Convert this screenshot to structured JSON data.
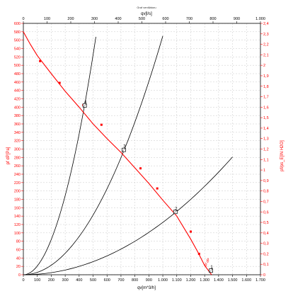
{
  "chart_data": {
    "type": "line",
    "title": "Graf ventilátoru",
    "top_axis_label": "qv[l/s]",
    "bottom_axis_label": "qv[m^3/h]",
    "left_axis_label": "pf dP[Pa]",
    "right_axis_label": "pf/ps_E[IN H2O]",
    "x_m3h": {
      "min": 0,
      "max": 1700,
      "ticks": [
        0,
        100,
        200,
        300,
        400,
        500,
        600,
        700,
        800,
        900,
        1000,
        1100,
        1200,
        1300,
        1400,
        1500,
        1600,
        1700
      ],
      "tick_labels": [
        "0",
        "100",
        "200",
        "300",
        "400",
        "500",
        "600",
        "700",
        "800",
        "900",
        "1.000",
        "1.100",
        "1.200",
        "1.300",
        "1.400",
        "1.500",
        "1.600",
        "1.700"
      ]
    },
    "x_ls": {
      "min": 0,
      "max": 1000,
      "ticks": [
        0,
        100,
        200,
        300,
        400,
        500,
        600,
        700,
        800,
        900,
        1000
      ],
      "tick_labels": [
        "0",
        "100",
        "200",
        "300",
        "400",
        "500",
        "600",
        "700",
        "800",
        "900",
        "1.000"
      ]
    },
    "y_pa": {
      "min": 0,
      "max": 600,
      "ticks": [
        0,
        20,
        40,
        60,
        80,
        100,
        120,
        140,
        160,
        180,
        200,
        220,
        240,
        260,
        280,
        300,
        320,
        340,
        360,
        380,
        400,
        420,
        440,
        460,
        480,
        500,
        520,
        540,
        560,
        580,
        600
      ],
      "tick_labels": [
        "0",
        "20",
        "40",
        "60",
        "80",
        "100",
        "120",
        "140",
        "160",
        "180",
        "200",
        "220",
        "240",
        "260",
        "280",
        "300",
        "320",
        "340",
        "360",
        "380",
        "400",
        "420",
        "440",
        "460",
        "480",
        "500",
        "520",
        "540",
        "560",
        "580",
        "600"
      ]
    },
    "y_inh2o": {
      "min": 0,
      "max": 2.4,
      "ticks": [
        0,
        0.1,
        0.2,
        0.3,
        0.4,
        0.5,
        0.6,
        0.7,
        0.8,
        0.9,
        1,
        1.1,
        1.2,
        1.3,
        1.4,
        1.5,
        1.6,
        1.7,
        1.8,
        1.9,
        2,
        2.1,
        2.2,
        2.3,
        2.4
      ],
      "tick_labels": [
        "0",
        "0,1",
        "0,2",
        "0,3",
        "0,4",
        "0,5",
        "0,6",
        "0,7",
        "0,8",
        "0,9",
        "1",
        "1,1",
        "1,2",
        "1,3",
        "1,4",
        "1,5",
        "1,6",
        "1,7",
        "1,8",
        "1,9",
        "2",
        "2,1",
        "2,2",
        "2,3",
        "2,4"
      ]
    },
    "grid": true,
    "fan_curve": {
      "color": "#ff0000",
      "label": "pf dP",
      "x": [
        0,
        50,
        100,
        200,
        300,
        400,
        500,
        600,
        700,
        800,
        900,
        1000,
        1100,
        1200,
        1250,
        1300,
        1350
      ],
      "y": [
        580,
        550,
        523,
        480,
        438,
        400,
        360,
        325,
        292,
        255,
        218,
        178,
        140,
        85,
        55,
        22,
        0
      ],
      "markers_x": [
        120,
        260,
        430,
        560,
        720,
        840,
        960,
        1200,
        1260
      ],
      "markers_y": [
        510,
        458,
        405,
        358,
        300,
        254,
        206,
        103,
        50
      ]
    },
    "system_curves": {
      "color": "#000000",
      "curves": [
        {
          "x_end": 520,
          "coefficient": 0.0021
        },
        {
          "x_end": 1000,
          "coefficient": 0.00057
        },
        {
          "x_end": 1500,
          "coefficient": 0.000125
        }
      ]
    },
    "operating_points": [
      {
        "label": "4",
        "x": 440,
        "y": 404
      },
      {
        "label": "3",
        "x": 720,
        "y": 298
      },
      {
        "label": "2",
        "x": 1090,
        "y": 150
      },
      {
        "label": "1",
        "x": 1345,
        "y": 10
      }
    ]
  }
}
